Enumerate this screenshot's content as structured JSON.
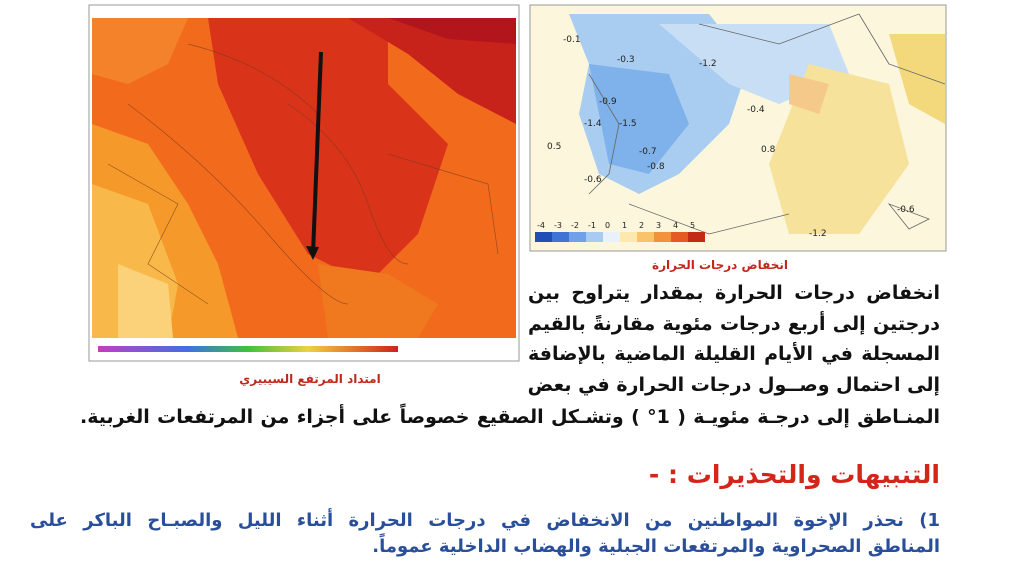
{
  "maps": {
    "left_caption": "امتداد المرتفع السيبيري",
    "right_caption": "انخفاض درجات الحرارة",
    "right_labels": [
      -0.1,
      -0.3,
      -1.2,
      -0.9,
      -1.4,
      -1.5,
      -0.4,
      0.5,
      -0.7,
      0.8,
      -0.8,
      -0.6,
      -1.2,
      -0.6
    ],
    "colorbar": [
      -4,
      -3,
      -2,
      -1,
      0,
      1,
      2,
      3,
      4,
      5
    ]
  },
  "paragraph": {
    "lines": [
      "انخفاض درجات الحرارة بمقدار يتراوح بين",
      "درجتين إلى أربع درجات مئوية مقارنةً بالقيم",
      "المسجلة في الأيام القليلة الماضية بالإضافة",
      "إلى احتمال وصــول درجات الحرارة في بعض",
      "المنـاطق إلى درجـة مئويـة ( 1° ) وتشـكل الصقيع خصوصاً على أجزاء من المرتفعات الغربية."
    ]
  },
  "warnings": {
    "heading": "التنبيهات والتحذيرات : -",
    "lines": [
      "1) نحذر الإخوة المواطنين من الانخفاض في درجات الحرارة أثناء الليل والصبـاح الباكر على",
      "المناطق الصحراوية والمرتفعات الجبلية والهضاب الداخلية عموماً."
    ]
  }
}
